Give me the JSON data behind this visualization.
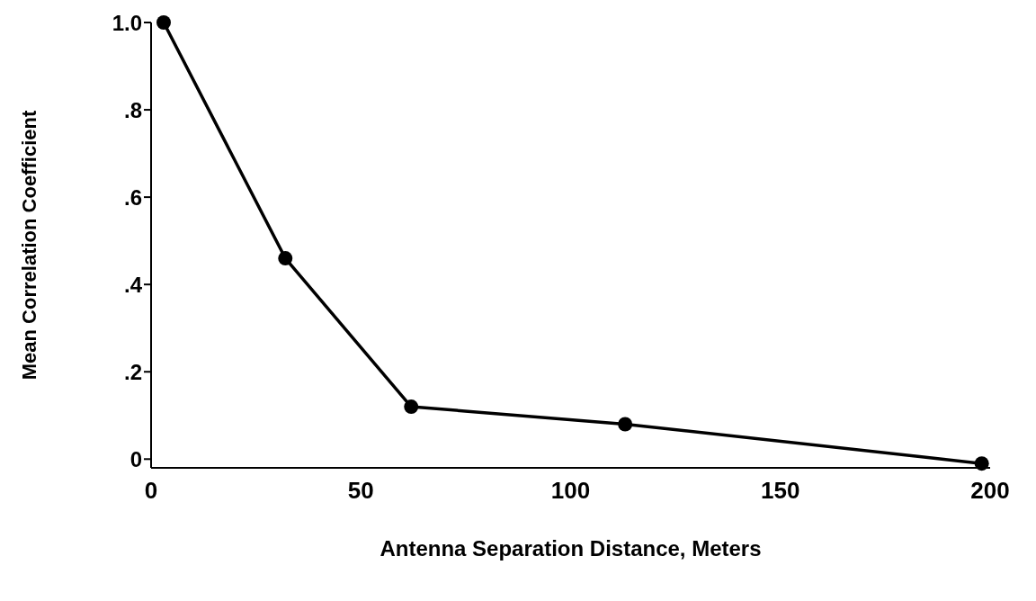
{
  "chart_data": {
    "type": "line",
    "xlabel": "Antenna  Separation Distance, Meters",
    "ylabel": "Mean Correlation Coefficient",
    "x": [
      3,
      32,
      62,
      113,
      198
    ],
    "series": [
      {
        "color": "#000000",
        "values": [
          1.0,
          0.46,
          0.12,
          0.08,
          -0.01
        ]
      }
    ],
    "xlim": [
      0,
      200
    ],
    "xticks": [
      0,
      50,
      100,
      150,
      200
    ],
    "ylim": [
      -0.02,
      1.0
    ],
    "yticks": [
      0,
      {
        "value": 0.2,
        "label": ".2"
      },
      {
        "value": 0.4,
        "label": ".4"
      },
      {
        "value": 0.6,
        "label": ".6"
      },
      {
        "value": 0.8,
        "label": ".8"
      },
      {
        "value": 1.0,
        "label": "1.0"
      }
    ],
    "grid": false,
    "legend": false,
    "marker": "circle",
    "line_style": "solid"
  }
}
